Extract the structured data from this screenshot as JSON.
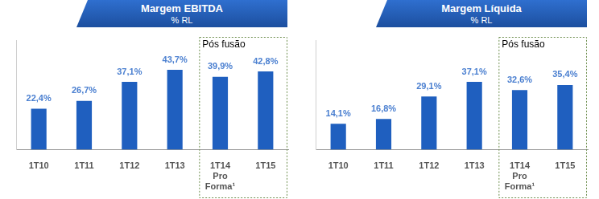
{
  "chart_data": [
    {
      "type": "bar",
      "title": "Margem EBITDA",
      "subtitle": "% RL",
      "categories": [
        "1T10",
        "1T11",
        "1T12",
        "1T13",
        "1T14 Pro Forma¹",
        "1T15"
      ],
      "values": [
        22.4,
        26.7,
        37.1,
        43.7,
        39.9,
        42.8
      ],
      "value_labels": [
        "22,4%",
        "26,7%",
        "37,1%",
        "43,7%",
        "39,9%",
        "42,8%"
      ],
      "color": "#1f5fbf",
      "data_labels": true,
      "tick_labels": "x",
      "grid": false,
      "ylim": [
        0,
        60
      ],
      "annotations": [
        {
          "text": "Pós fusão",
          "categories": [
            "1T14 Pro Forma¹",
            "1T15"
          ]
        }
      ]
    },
    {
      "type": "bar",
      "title": "Margem Líquida",
      "subtitle": "% RL",
      "categories": [
        "1T10",
        "1T11",
        "1T12",
        "1T13",
        "1T14 Pro Forma¹",
        "1T15"
      ],
      "values": [
        14.1,
        16.8,
        29.1,
        37.1,
        32.6,
        35.4
      ],
      "value_labels": [
        "14,1%",
        "16,8%",
        "29,1%",
        "37,1%",
        "32,6%",
        "35,4%"
      ],
      "color": "#1f5fbf",
      "data_labels": true,
      "tick_labels": "x",
      "grid": false,
      "ylim": [
        0,
        60
      ],
      "annotations": [
        {
          "text": "Pós fusão",
          "categories": [
            "1T14 Pro Forma¹",
            "1T15"
          ]
        }
      ]
    }
  ]
}
